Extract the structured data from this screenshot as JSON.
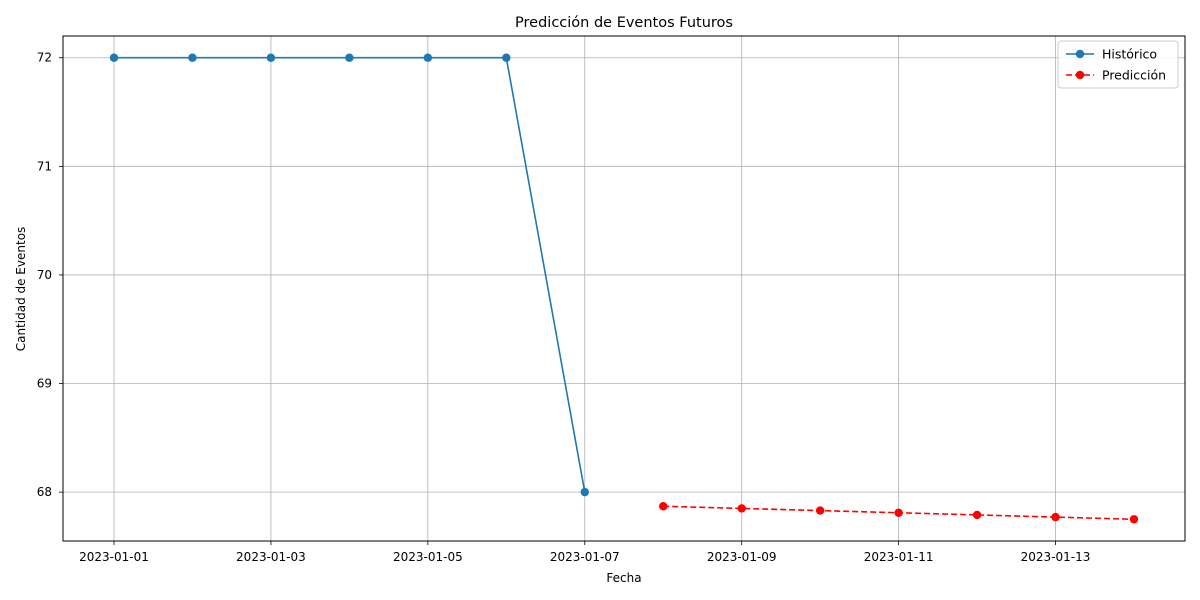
{
  "chart_data": {
    "type": "line",
    "title": "Predicción de Eventos Futuros",
    "xlabel": "Fecha",
    "ylabel": "Cantidad de Eventos",
    "x_ticks": [
      "2023-01-01",
      "2023-01-03",
      "2023-01-05",
      "2023-01-07",
      "2023-01-09",
      "2023-01-11",
      "2023-01-13"
    ],
    "y_ticks": [
      68,
      69,
      70,
      71,
      72
    ],
    "xlim": [
      "2022-12-31",
      "2023-01-14"
    ],
    "ylim": [
      67.55,
      72.2
    ],
    "grid": true,
    "legend_position": "top-right",
    "series": [
      {
        "name": "Histórico",
        "color": "#1f77b4",
        "linestyle": "solid",
        "marker": "circle",
        "x": [
          "2023-01-01",
          "2023-01-02",
          "2023-01-03",
          "2023-01-04",
          "2023-01-05",
          "2023-01-06",
          "2023-01-07"
        ],
        "values": [
          72,
          72,
          72,
          72,
          72,
          72,
          68
        ]
      },
      {
        "name": "Predicción",
        "color": "#ff0000",
        "linestyle": "dashed",
        "marker": "circle",
        "x": [
          "2023-01-08",
          "2023-01-09",
          "2023-01-10",
          "2023-01-11",
          "2023-01-12",
          "2023-01-13",
          "2023-01-14"
        ],
        "values": [
          67.87,
          67.85,
          67.83,
          67.81,
          67.79,
          67.77,
          67.75
        ]
      }
    ]
  }
}
